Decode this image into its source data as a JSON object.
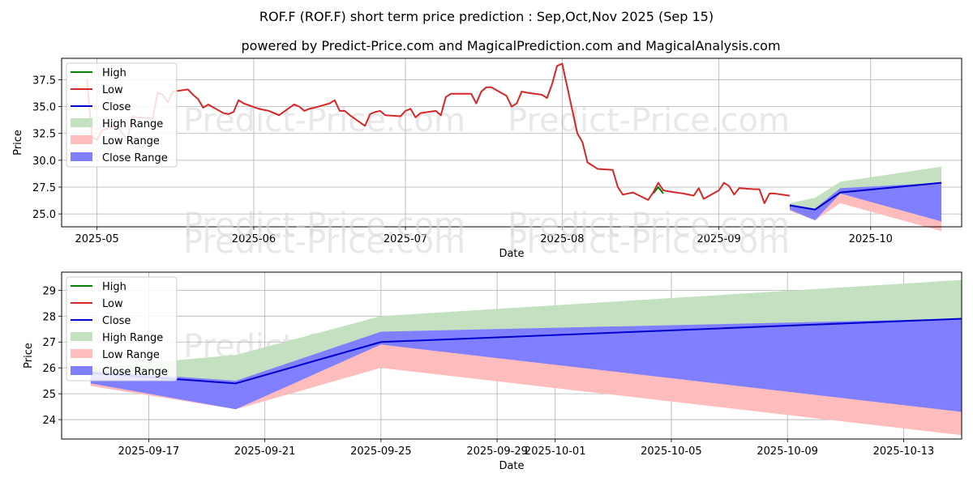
{
  "title": "ROF.F (ROF.F) short term price prediction : Sep,Oct,Nov 2025 (Sep 15)",
  "subtitle": "powered by Predict-Price.com and MagicalPrediction.com and MagicalAnalysis.com",
  "watermark": "Predict-Price.com",
  "colors": {
    "high": "#008000",
    "low": "#d62728",
    "close": "#0000cc",
    "high_range": "#c3e1c0",
    "low_range": "#ffbcbc",
    "close_range": "#7f7fff"
  },
  "legend": [
    "High",
    "Low",
    "Close",
    "High Range",
    "Low Range",
    "Close Range"
  ],
  "chart_data": [
    {
      "type": "line",
      "xlabel": "Date",
      "ylabel": "Price",
      "xlim": [
        "2025-04-24",
        "2025-10-19"
      ],
      "ylim": [
        23.8,
        39.5
      ],
      "grid": true,
      "legend_placement": "top-left",
      "xticks": [
        "2025-05-01",
        "2025-06-01",
        "2025-07-01",
        "2025-08-01",
        "2025-09-01",
        "2025-10-01"
      ],
      "xtick_labels": [
        "2025-05",
        "2025-06",
        "2025-07",
        "2025-08",
        "2025-09",
        "2025-10"
      ],
      "yticks": [
        25.0,
        27.5,
        30.0,
        32.5,
        35.0,
        37.5
      ],
      "ytick_labels": [
        "25.0",
        "27.5",
        "30.0",
        "32.5",
        "35.0",
        "37.5"
      ],
      "series": [
        {
          "name": "High",
          "x": [
            "2025-08-19",
            "2025-08-20",
            "2025-08-21"
          ],
          "values": [
            26.9,
            27.5,
            26.9
          ]
        },
        {
          "name": "Low",
          "x": [
            "2025-04-29",
            "2025-04-30",
            "2025-05-01",
            "2025-05-02",
            "2025-05-05",
            "2025-05-06",
            "2025-05-07",
            "2025-05-08",
            "2025-05-09",
            "2025-05-12",
            "2025-05-13",
            "2025-05-14",
            "2025-05-15",
            "2025-05-16",
            "2025-05-19",
            "2025-05-20",
            "2025-05-21",
            "2025-05-22",
            "2025-05-23",
            "2025-05-26",
            "2025-05-27",
            "2025-05-28",
            "2025-05-29",
            "2025-05-30",
            "2025-06-02",
            "2025-06-03",
            "2025-06-04",
            "2025-06-05",
            "2025-06-06",
            "2025-06-09",
            "2025-06-10",
            "2025-06-11",
            "2025-06-12",
            "2025-06-13",
            "2025-06-16",
            "2025-06-17",
            "2025-06-18",
            "2025-06-19",
            "2025-06-20",
            "2025-06-23",
            "2025-06-24",
            "2025-06-25",
            "2025-06-26",
            "2025-06-27",
            "2025-06-30",
            "2025-07-01",
            "2025-07-02",
            "2025-07-03",
            "2025-07-04",
            "2025-07-07",
            "2025-07-08",
            "2025-07-09",
            "2025-07-10",
            "2025-07-11",
            "2025-07-14",
            "2025-07-15",
            "2025-07-16",
            "2025-07-17",
            "2025-07-18",
            "2025-07-21",
            "2025-07-22",
            "2025-07-23",
            "2025-07-24",
            "2025-07-25",
            "2025-07-28",
            "2025-07-29",
            "2025-07-30",
            "2025-07-31",
            "2025-08-01",
            "2025-08-04",
            "2025-08-05",
            "2025-08-06",
            "2025-08-07",
            "2025-08-08",
            "2025-08-11",
            "2025-08-12",
            "2025-08-13",
            "2025-08-14",
            "2025-08-15",
            "2025-08-18",
            "2025-08-19",
            "2025-08-20",
            "2025-08-21",
            "2025-08-22",
            "2025-08-25",
            "2025-08-26",
            "2025-08-27",
            "2025-08-28",
            "2025-08-29",
            "2025-09-01",
            "2025-09-02",
            "2025-09-03",
            "2025-09-04",
            "2025-09-05",
            "2025-09-08",
            "2025-09-09",
            "2025-09-10",
            "2025-09-11",
            "2025-09-12",
            "2025-09-15"
          ],
          "values": [
            37.5,
            32.2,
            31.9,
            32.8,
            33.2,
            32.5,
            31.9,
            34.1,
            34.0,
            33.9,
            36.3,
            36.1,
            35.4,
            36.4,
            36.6,
            36.1,
            35.7,
            34.9,
            35.2,
            34.4,
            34.3,
            34.5,
            35.6,
            35.3,
            34.8,
            34.7,
            34.6,
            34.4,
            34.2,
            35.2,
            35.0,
            34.6,
            34.8,
            34.9,
            35.3,
            35.6,
            34.6,
            34.6,
            34.2,
            33.2,
            34.3,
            34.5,
            34.6,
            34.2,
            34.1,
            34.6,
            34.8,
            34.0,
            34.4,
            34.6,
            34.2,
            35.9,
            36.2,
            36.2,
            36.2,
            35.3,
            36.4,
            36.8,
            36.8,
            36.0,
            35.0,
            35.3,
            36.4,
            36.3,
            36.1,
            35.8,
            37.1,
            38.8,
            39.0,
            32.5,
            31.7,
            29.8,
            29.5,
            29.2,
            29.1,
            27.5,
            26.8,
            26.9,
            27.0,
            26.3,
            27.0,
            27.9,
            27.2,
            27.1,
            26.9,
            26.8,
            26.7,
            27.4,
            26.4,
            27.2,
            27.9,
            27.6,
            26.8,
            27.4,
            27.3,
            27.3,
            26.0,
            26.9,
            26.9,
            26.7
          ],
          "note_truncated": false
        },
        {
          "name": "Close",
          "x": [
            "2025-09-15",
            "2025-09-20",
            "2025-09-25",
            "2025-10-15"
          ],
          "values": [
            25.8,
            25.4,
            27.0,
            27.9
          ]
        }
      ]
    },
    {
      "type": "area",
      "xlabel": "Date",
      "ylabel": "Price",
      "xlim": [
        "2025-09-14",
        "2025-10-15"
      ],
      "ylim": [
        23.25,
        29.7
      ],
      "grid": true,
      "legend_placement": "top-left",
      "xticks": [
        "2025-09-17",
        "2025-09-21",
        "2025-09-25",
        "2025-09-29",
        "2025-10-01",
        "2025-10-05",
        "2025-10-09",
        "2025-10-13"
      ],
      "yticks": [
        24,
        25,
        26,
        27,
        28,
        29
      ],
      "x": [
        "2025-09-15",
        "2025-09-20",
        "2025-09-25",
        "2025-10-15"
      ],
      "series": [
        {
          "name": "High Range",
          "upper": [
            26.0,
            26.5,
            28.0,
            29.4
          ],
          "lower": [
            25.7,
            25.4,
            27.0,
            27.9
          ]
        },
        {
          "name": "Low Range",
          "upper": [
            25.6,
            25.3,
            27.0,
            24.4
          ],
          "lower": [
            25.3,
            24.4,
            26.0,
            23.4
          ]
        },
        {
          "name": "Close Range",
          "upper": [
            25.9,
            25.5,
            27.4,
            27.9
          ],
          "lower": [
            25.4,
            24.4,
            26.9,
            24.3
          ]
        },
        {
          "name": "Close",
          "values": [
            25.8,
            25.4,
            27.0,
            27.9
          ]
        }
      ]
    }
  ]
}
